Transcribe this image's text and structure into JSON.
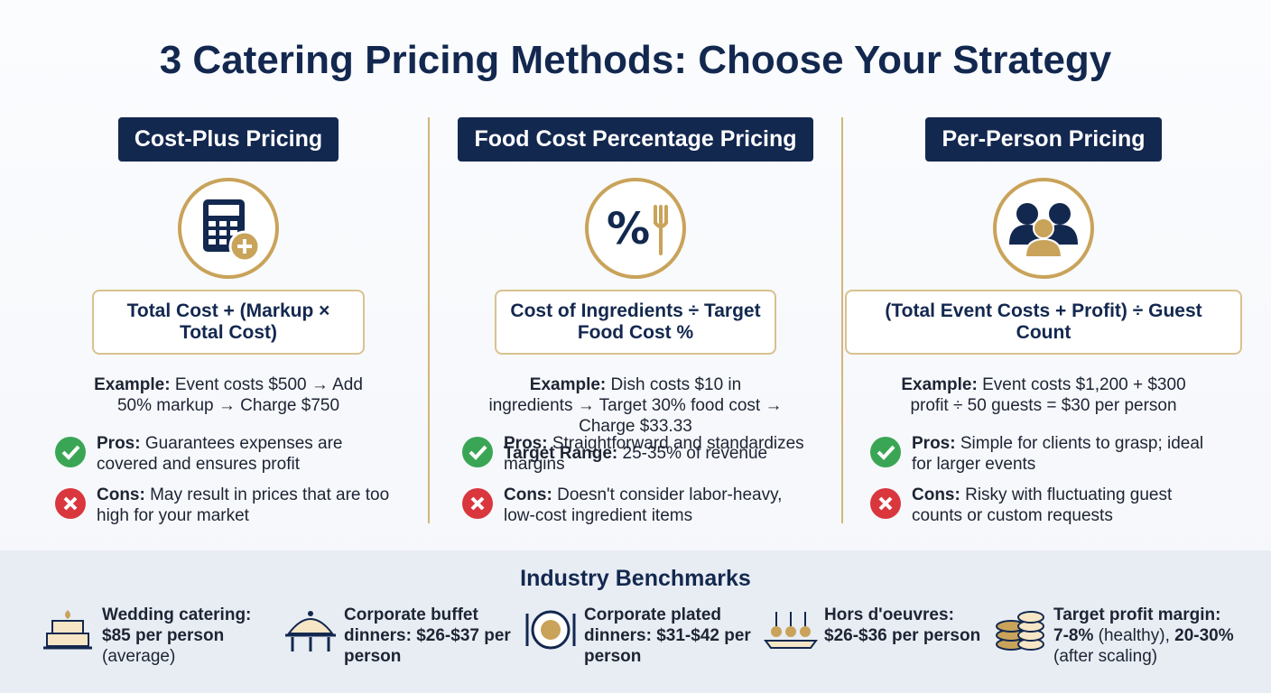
{
  "title": "3 Catering Pricing Methods: Choose Your Strategy",
  "methods": [
    {
      "name": "Cost-Plus Pricing",
      "formula": "Total Cost + (Markup × Total Cost)",
      "example": {
        "label": "Example:",
        "text": "Event costs $500 → Add 50% markup → Charge $750"
      },
      "pros": {
        "label": "Pros:",
        "text": "Guarantees expenses are covered and ensures profit"
      },
      "cons": {
        "label": "Cons:",
        "text": "May result in prices that are too high for your market"
      }
    },
    {
      "name": "Food Cost Percentage Pricing",
      "formula": "Cost of Ingredients ÷ Target Food Cost %",
      "example": {
        "label": "Example:",
        "text": "Dish costs $10 in ingredients → Target 30% food cost → Charge $33.33"
      },
      "target": {
        "label": "Target Range:",
        "text": "25-35% of revenue"
      },
      "pros": {
        "label": "Pros:",
        "text": "Straightforward and standardizes margins"
      },
      "cons": {
        "label": "Cons:",
        "text": "Doesn't consider labor-heavy, low-cost ingredient items"
      }
    },
    {
      "name": "Per-Person Pricing",
      "formula": "(Total Event Costs + Profit) ÷ Guest Count",
      "example": {
        "label": "Example:",
        "text": "Event costs $1,200 + $300 profit ÷ 50 guests = $30 per person"
      },
      "pros": {
        "label": "Pros:",
        "text": "Simple for clients to grasp; ideal for larger events"
      },
      "cons": {
        "label": "Cons:",
        "text": "Risky with fluctuating guest counts or custom requests"
      }
    }
  ],
  "benchmarks": {
    "title": "Industry Benchmarks",
    "items": [
      {
        "parts": [
          {
            "strong": "Wedding catering: $85 per person",
            "text": "(average)"
          }
        ]
      },
      {
        "parts": [
          {
            "strong": "Corporate buffet dinners: $26-$37 per person"
          }
        ]
      },
      {
        "parts": [
          {
            "strong": "Corporate plated dinners: $31-$42 per person"
          }
        ]
      },
      {
        "parts": [
          {
            "strong": "Hors d'oeuvres: $26-$36 per person"
          }
        ]
      },
      {
        "parts": [
          {
            "strong": "Target profit margin: 7-8%",
            "text": "(healthy),"
          },
          {
            "strong": "20-30%",
            "text": "(after scaling)"
          }
        ]
      }
    ]
  }
}
